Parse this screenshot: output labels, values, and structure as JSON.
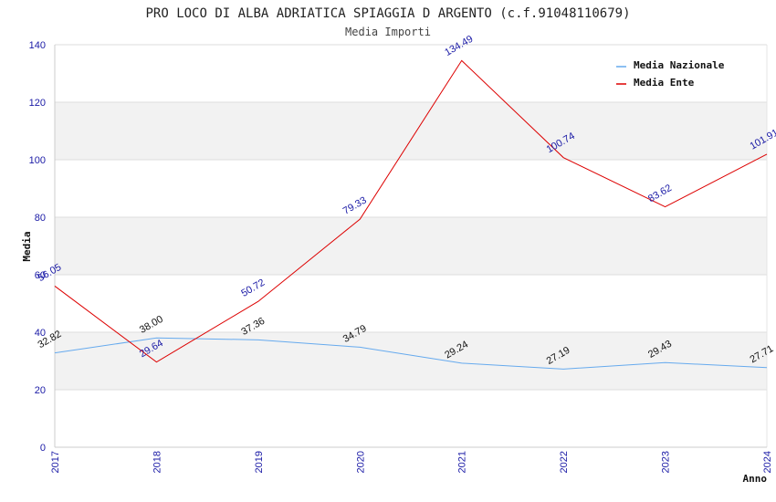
{
  "chart_data": {
    "type": "line",
    "title": "PRO LOCO DI ALBA ADRIATICA SPIAGGIA D ARGENTO (c.f.91048110679)",
    "subtitle": "Media Importi",
    "xlabel": "Anno",
    "ylabel": "Media",
    "ylim": [
      0,
      140
    ],
    "yticks": [
      "0",
      "20",
      "40",
      "60",
      "80",
      "100",
      "120",
      "140"
    ],
    "categories": [
      "2017",
      "2018",
      "2019",
      "2020",
      "2021",
      "2022",
      "2023",
      "2024"
    ],
    "grid": true,
    "legend_position": "top-right",
    "series": [
      {
        "name": "Media Nazionale",
        "color": "#66aaee",
        "values": [
          32.82,
          38.0,
          37.36,
          34.79,
          29.24,
          27.19,
          29.43,
          27.71
        ],
        "labels": [
          "32.82",
          "38.00",
          "37.36",
          "34.79",
          "29.24",
          "27.19",
          "29.43",
          "27.71"
        ]
      },
      {
        "name": "Media Ente",
        "color": "#dd0000",
        "values": [
          56.05,
          29.64,
          50.72,
          79.33,
          134.49,
          100.74,
          83.62,
          101.91
        ],
        "labels": [
          "56.05",
          "29.64",
          "50.72",
          "79.33",
          "134.49",
          "100.74",
          "83.62",
          "101.91"
        ]
      }
    ]
  }
}
